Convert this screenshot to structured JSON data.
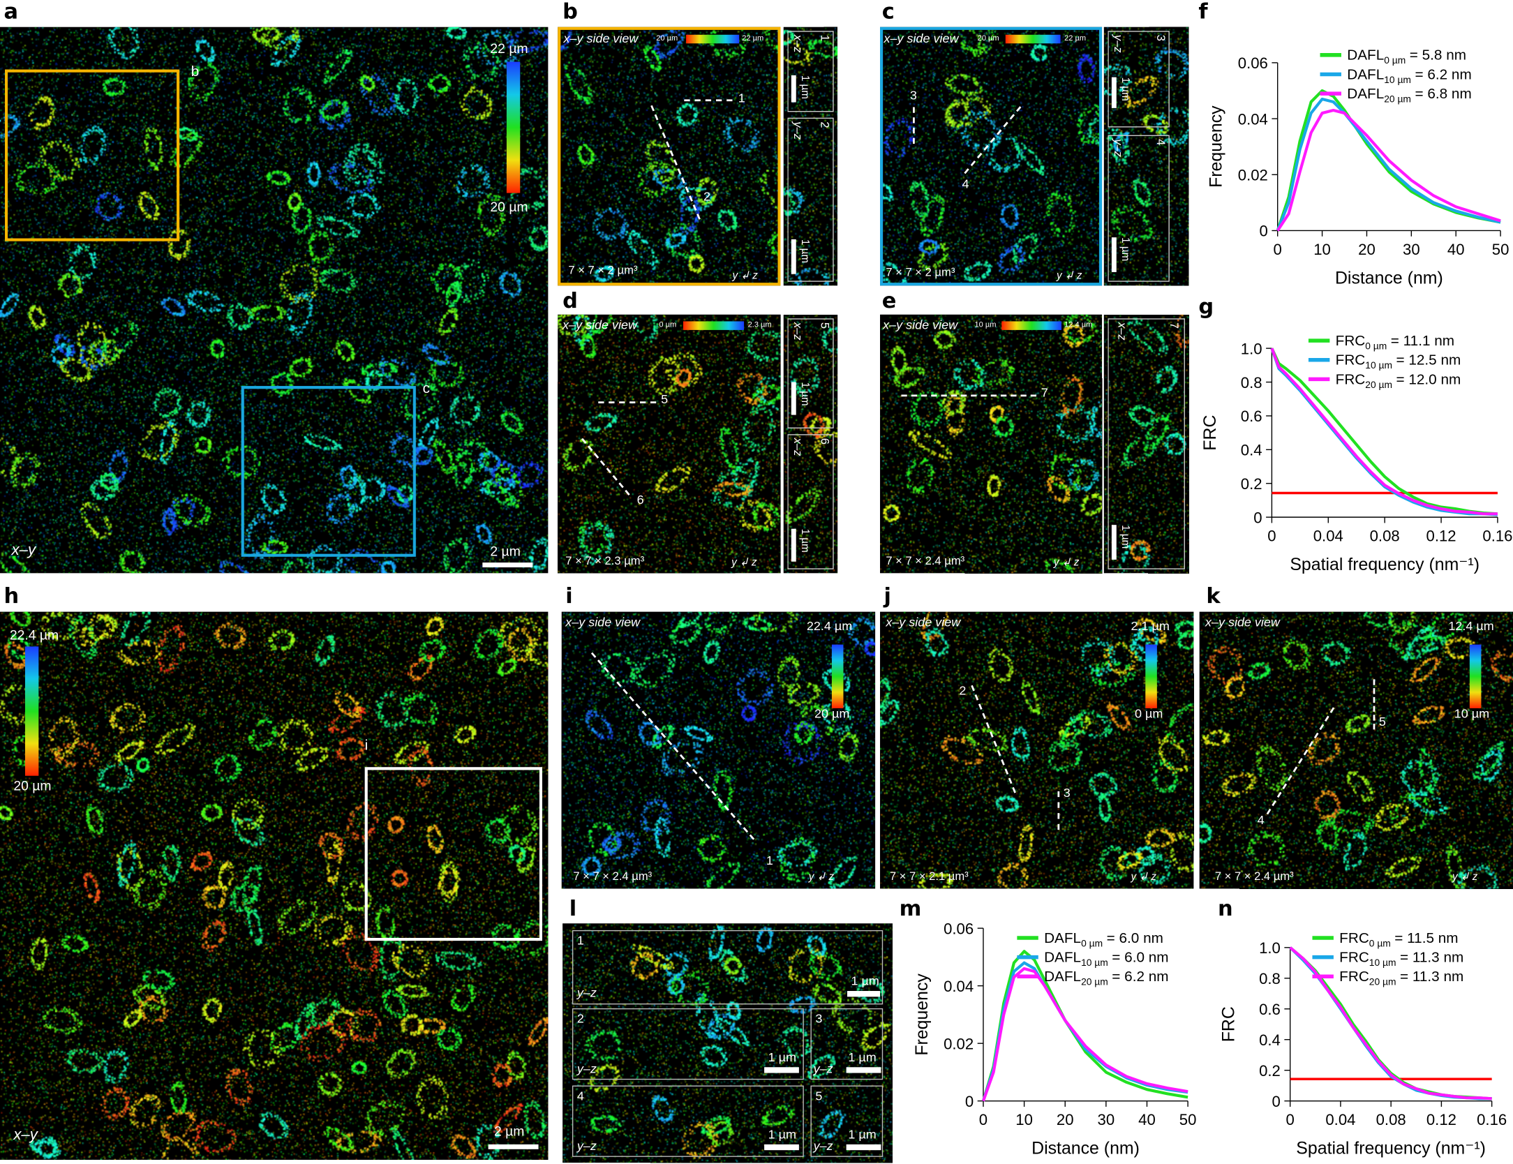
{
  "panels": {
    "a": {
      "label": "a",
      "cbar_top": "22 µm",
      "cbar_bottom": "20 µm",
      "view": "x–y",
      "scale": "2 µm",
      "box_b": "b",
      "box_c": "c"
    },
    "b": {
      "label": "b",
      "title": "x–y side view",
      "cbar_left": "20 µm",
      "cbar_right": "22 µm",
      "volume": "7 × 7 × 2 µm³",
      "line1": "1",
      "line2": "2",
      "side1_axis": "x–z",
      "side1_num": "1",
      "side2_axis": "y–z",
      "side2_num": "2",
      "side_scale": "1 µm",
      "border": "#f5b400"
    },
    "c": {
      "label": "c",
      "title": "x–y side view",
      "cbar_left": "20 µm",
      "cbar_right": "22 µm",
      "volume": "7 × 7 × 2 µm³",
      "line3": "3",
      "line4": "4",
      "side1_axis": "y–z",
      "side1_num": "3",
      "side2_axis": "y–z",
      "side2_num": "4",
      "side_scale": "1 µm",
      "border": "#1aa7e0"
    },
    "d": {
      "label": "d",
      "title": "x–y side view",
      "cbar_left": "0 µm",
      "cbar_right": "2.3 µm",
      "volume": "7 × 7 × 2.3 µm³",
      "line5": "5",
      "line6": "6",
      "side1_axis": "x–z",
      "side1_num": "5",
      "side2_axis": "x–z",
      "side2_num": "6",
      "side_scale": "1 µm"
    },
    "e": {
      "label": "e",
      "title": "x–y side view",
      "cbar_left": "10 µm",
      "cbar_right": "12.4 µm",
      "volume": "7 × 7 × 2.4 µm³",
      "line7": "7",
      "side1_axis": "x–z",
      "side1_num": "7",
      "side_scale": "1 µm"
    },
    "f": {
      "label": "f"
    },
    "g": {
      "label": "g"
    },
    "h": {
      "label": "h",
      "cbar_top": "22.4 µm",
      "cbar_bottom": "20 µm",
      "view": "x–y",
      "scale": "2 µm",
      "box_i": "i"
    },
    "i": {
      "label": "i",
      "title": "x–y side view",
      "cbar_top": "22.4 µm",
      "cbar_bottom": "20 µm",
      "volume": "7 × 7 × 2.4 µm³",
      "line1": "1"
    },
    "j": {
      "label": "j",
      "title": "x–y side view",
      "cbar_top": "2.1 µm",
      "cbar_bottom": "0 µm",
      "volume": "7 × 7 × 2.1 µm³",
      "line2": "2",
      "line3": "3"
    },
    "k": {
      "label": "k",
      "title": "x–y side view",
      "cbar_top": "12.4 µm",
      "cbar_bottom": "10 µm",
      "volume": "7 × 7 × 2.4 µm³",
      "line4": "4",
      "line5": "5"
    },
    "l": {
      "label": "l",
      "subpanels": [
        {
          "num": "1",
          "axis": "y–z",
          "scale": "1 µm"
        },
        {
          "num": "2",
          "axis": "y–z",
          "scale": "1 µm"
        },
        {
          "num": "3",
          "axis": "y–z",
          "scale": "1 µm"
        },
        {
          "num": "4",
          "axis": "y–z",
          "scale": "1 µm"
        },
        {
          "num": "5",
          "axis": "y–z",
          "scale": "1 µm"
        }
      ]
    },
    "m": {
      "label": "m"
    },
    "n": {
      "label": "n"
    },
    "axes_glyph": {
      "x": "x",
      "y": "y",
      "z": "z"
    }
  },
  "colors": {
    "green": "#22e022",
    "blue": "#1aa7e8",
    "magenta": "#ff1aff",
    "threshold": "#ff0000",
    "orange_box": "#f5b400",
    "blue_box": "#1aa7e0"
  },
  "chart_data": [
    {
      "id": "f",
      "type": "line",
      "xlabel": "Distance (nm)",
      "ylabel": "Frequency",
      "xlim": [
        0,
        50
      ],
      "ylim": [
        0,
        0.06
      ],
      "xticks": [
        "0",
        "10",
        "20",
        "30",
        "40",
        "50"
      ],
      "yticks": [
        "0",
        "0.02",
        "0.04",
        "0.06"
      ],
      "legend": "top-right",
      "x": [
        0,
        2.5,
        5,
        7.5,
        10,
        12.5,
        15,
        17.5,
        20,
        25,
        30,
        35,
        40,
        45,
        50
      ],
      "series": [
        {
          "name": "DAFL",
          "sub": "0 µm",
          "value": "= 5.8 nm",
          "color": "#22e022",
          "values": [
            0,
            0.012,
            0.032,
            0.046,
            0.05,
            0.048,
            0.043,
            0.037,
            0.031,
            0.021,
            0.014,
            0.0095,
            0.0065,
            0.0045,
            0.003
          ]
        },
        {
          "name": "DAFL",
          "sub": "10 µm",
          "value": "= 6.2 nm",
          "color": "#1aa7e8",
          "values": [
            0,
            0.01,
            0.029,
            0.042,
            0.047,
            0.046,
            0.042,
            0.037,
            0.032,
            0.022,
            0.015,
            0.01,
            0.007,
            0.0048,
            0.003
          ]
        },
        {
          "name": "DAFL",
          "sub": "20 µm",
          "value": "= 6.8 nm",
          "color": "#ff1aff",
          "values": [
            0,
            0.006,
            0.021,
            0.035,
            0.042,
            0.043,
            0.042,
            0.038,
            0.034,
            0.025,
            0.018,
            0.0125,
            0.0085,
            0.006,
            0.0035
          ]
        }
      ]
    },
    {
      "id": "g",
      "type": "line",
      "xlabel": "Spatial frequency (nm⁻¹)",
      "ylabel": "FRC",
      "xlim": [
        0,
        0.16
      ],
      "ylim": [
        0,
        1.0
      ],
      "xticks": [
        "0",
        "0.04",
        "0.08",
        "0.12",
        "0.16"
      ],
      "yticks": [
        "0",
        "0.2",
        "0.4",
        "0.6",
        "0.8",
        "1.0"
      ],
      "legend": "top-right",
      "threshold": 0.143,
      "x": [
        0,
        0.005,
        0.01,
        0.02,
        0.03,
        0.04,
        0.05,
        0.06,
        0.07,
        0.08,
        0.09,
        0.1,
        0.11,
        0.12,
        0.13,
        0.14,
        0.15,
        0.16
      ],
      "series": [
        {
          "name": "FRC",
          "sub": "0 µm",
          "value": "= 11.1 nm",
          "color": "#22e022",
          "values": [
            1.0,
            0.91,
            0.88,
            0.81,
            0.72,
            0.63,
            0.53,
            0.43,
            0.33,
            0.24,
            0.17,
            0.12,
            0.08,
            0.06,
            0.05,
            0.035,
            0.025,
            0.02
          ]
        },
        {
          "name": "FRC",
          "sub": "10 µm",
          "value": "= 12.5 nm",
          "color": "#1aa7e8",
          "values": [
            1.0,
            0.88,
            0.84,
            0.75,
            0.65,
            0.55,
            0.45,
            0.35,
            0.26,
            0.18,
            0.13,
            0.09,
            0.06,
            0.04,
            0.03,
            0.02,
            0.02,
            0.015
          ]
        },
        {
          "name": "FRC",
          "sub": "20 µm",
          "value": "= 12.0 nm",
          "color": "#ff1aff",
          "values": [
            1.0,
            0.89,
            0.85,
            0.76,
            0.66,
            0.56,
            0.46,
            0.36,
            0.27,
            0.19,
            0.14,
            0.1,
            0.07,
            0.05,
            0.035,
            0.03,
            0.02,
            0.02
          ]
        }
      ]
    },
    {
      "id": "m",
      "type": "line",
      "xlabel": "Distance (nm)",
      "ylabel": "Frequency",
      "xlim": [
        0,
        50
      ],
      "ylim": [
        0,
        0.06
      ],
      "xticks": [
        "0",
        "10",
        "20",
        "30",
        "40",
        "50"
      ],
      "yticks": [
        "0",
        "0.02",
        "0.04",
        "0.06"
      ],
      "legend": "top-right",
      "x": [
        0,
        2.5,
        5,
        7.5,
        10,
        12.5,
        15,
        17.5,
        20,
        25,
        30,
        35,
        40,
        45,
        50
      ],
      "series": [
        {
          "name": "DAFL",
          "sub": "0 µm",
          "value": "= 6.0 nm",
          "color": "#22e022",
          "values": [
            0,
            0.012,
            0.034,
            0.048,
            0.052,
            0.049,
            0.042,
            0.035,
            0.028,
            0.017,
            0.01,
            0.0065,
            0.004,
            0.0025,
            0.0013
          ]
        },
        {
          "name": "DAFL",
          "sub": "10 µm",
          "value": "= 6.0 nm",
          "color": "#1aa7e8",
          "values": [
            0,
            0.011,
            0.032,
            0.045,
            0.048,
            0.046,
            0.04,
            0.034,
            0.028,
            0.018,
            0.012,
            0.008,
            0.0055,
            0.004,
            0.003
          ]
        },
        {
          "name": "DAFL",
          "sub": "20 µm",
          "value": "= 6.2 nm",
          "color": "#ff1aff",
          "values": [
            0,
            0.01,
            0.03,
            0.043,
            0.046,
            0.045,
            0.04,
            0.034,
            0.028,
            0.019,
            0.0125,
            0.0085,
            0.006,
            0.0045,
            0.0033
          ]
        }
      ]
    },
    {
      "id": "n",
      "type": "line",
      "xlabel": "Spatial frequency (nm⁻¹)",
      "ylabel": "FRC",
      "xlim": [
        0,
        0.16
      ],
      "ylim": [
        0,
        1.0
      ],
      "xticks": [
        "0",
        "0.04",
        "0.08",
        "0.12",
        "0.16"
      ],
      "yticks": [
        "0",
        "0.2",
        "0.4",
        "0.6",
        "0.8",
        "1.0"
      ],
      "legend": "top-right",
      "threshold": 0.143,
      "x": [
        0,
        0.01,
        0.02,
        0.03,
        0.04,
        0.05,
        0.06,
        0.07,
        0.08,
        0.09,
        0.1,
        0.11,
        0.12,
        0.13,
        0.14,
        0.15,
        0.16
      ],
      "series": [
        {
          "name": "FRC",
          "sub": "0 µm",
          "value": "= 11.5 nm",
          "color": "#22e022",
          "values": [
            1.0,
            0.93,
            0.85,
            0.74,
            0.63,
            0.5,
            0.39,
            0.27,
            0.18,
            0.12,
            0.08,
            0.06,
            0.04,
            0.03,
            0.025,
            0.02,
            0.015
          ]
        },
        {
          "name": "FRC",
          "sub": "10 µm",
          "value": "= 11.3 nm",
          "color": "#1aa7e8",
          "values": [
            1.0,
            0.92,
            0.83,
            0.72,
            0.6,
            0.48,
            0.36,
            0.25,
            0.16,
            0.11,
            0.07,
            0.05,
            0.035,
            0.025,
            0.02,
            0.015,
            0.015
          ]
        },
        {
          "name": "FRC",
          "sub": "20 µm",
          "value": "= 11.3 nm",
          "color": "#ff1aff",
          "values": [
            1.0,
            0.93,
            0.84,
            0.72,
            0.61,
            0.48,
            0.37,
            0.26,
            0.17,
            0.11,
            0.08,
            0.05,
            0.04,
            0.03,
            0.02,
            0.02,
            0.015
          ]
        }
      ]
    }
  ]
}
